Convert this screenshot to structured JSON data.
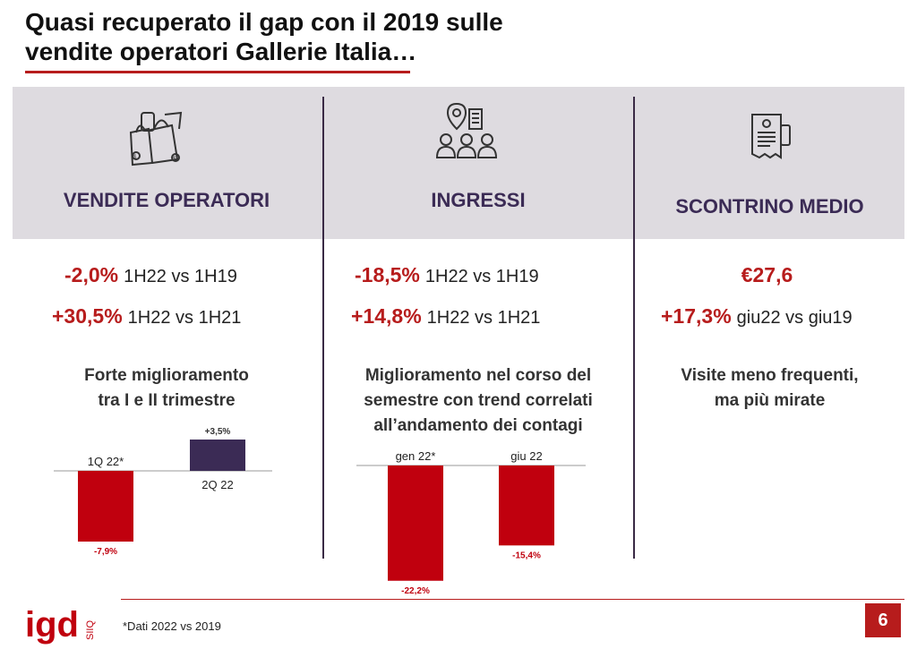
{
  "header": {
    "title_line1": "Quasi recuperato il gap con il 2019 sulle",
    "title_line2": "vendite operatori Gallerie Italia…"
  },
  "columns": [
    {
      "icon": "shopping-bags-icon",
      "title": "VENDITE OPERATORI",
      "stats": [
        {
          "value": "-2,0%",
          "label": "1H22 vs 1H19"
        },
        {
          "value": "+30,5%",
          "label": "1H22 vs 1H21"
        }
      ],
      "subtitle_line1": "Forte miglioramento",
      "subtitle_line2": "tra I e II trimestre"
    },
    {
      "icon": "people-location-icon",
      "title": "INGRESSI",
      "stats": [
        {
          "value": "-18,5%",
          "label": "1H22 vs 1H19"
        },
        {
          "value": "+14,8%",
          "label": "1H22 vs 1H21"
        }
      ],
      "subtitle_line1": "Miglioramento nel corso del",
      "subtitle_line2": "semestre con trend correlati",
      "subtitle_line3": "all’andamento dei contagi"
    },
    {
      "icon": "receipt-icon",
      "title": "SCONTRINO MEDIO",
      "stats": [
        {
          "value": "€27,6",
          "label": ""
        },
        {
          "value": "+17,3%",
          "label": "giu22 vs giu19"
        }
      ],
      "subtitle_line1": "Visite meno frequenti,",
      "subtitle_line2": "ma più mirate"
    }
  ],
  "chart_data": [
    {
      "type": "bar",
      "categories": [
        "1Q 22*",
        "2Q 22"
      ],
      "values": [
        -7.9,
        3.5
      ],
      "value_labels": [
        "-7,9%",
        "+3,5%"
      ],
      "colors": [
        "#c0000e",
        "#3b2b55"
      ],
      "title": "",
      "xlabel": "",
      "ylabel": ""
    },
    {
      "type": "bar",
      "categories": [
        "gen 22*",
        "giu 22"
      ],
      "values": [
        -22.2,
        -15.4
      ],
      "value_labels": [
        "-22,2%",
        "-15,4%"
      ],
      "colors": [
        "#c0000e",
        "#c0000e"
      ],
      "title": "",
      "xlabel": "",
      "ylabel": ""
    }
  ],
  "footer": {
    "logo_text": "igd",
    "logo_sub": "SIIQ",
    "footnote": "*Dati 2022 vs 2019",
    "page_number": "6"
  },
  "colors": {
    "accent_red": "#b71c1c",
    "bar_red": "#c0000e",
    "dark_purple": "#3b2b55",
    "band_gray": "#dedbe0"
  }
}
